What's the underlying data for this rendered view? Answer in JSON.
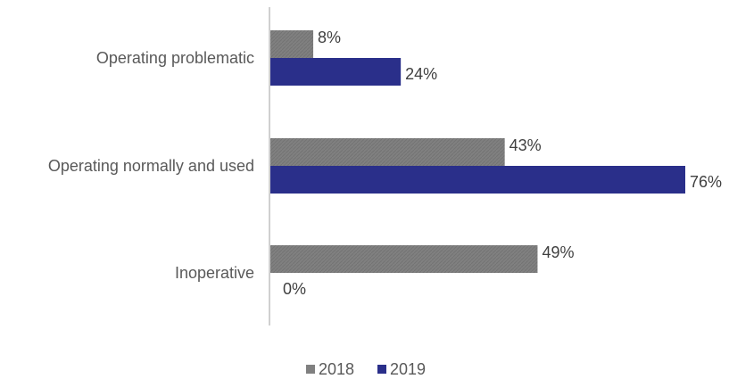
{
  "chart_data": {
    "type": "bar",
    "orientation": "horizontal",
    "categories": [
      "Operating problematic",
      "Operating normally and used",
      "Inoperative"
    ],
    "series": [
      {
        "name": "2018",
        "values": [
          8,
          43,
          49
        ],
        "labels": [
          "8%",
          "43%",
          "49%"
        ],
        "color": "#808080"
      },
      {
        "name": "2019",
        "values": [
          24,
          76,
          0
        ],
        "labels": [
          "24%",
          "76%",
          "0%"
        ],
        "color": "#2a2f8a"
      }
    ],
    "unit": "%",
    "xlim": [
      0,
      80
    ],
    "grid": false,
    "legend_position": "bottom"
  }
}
